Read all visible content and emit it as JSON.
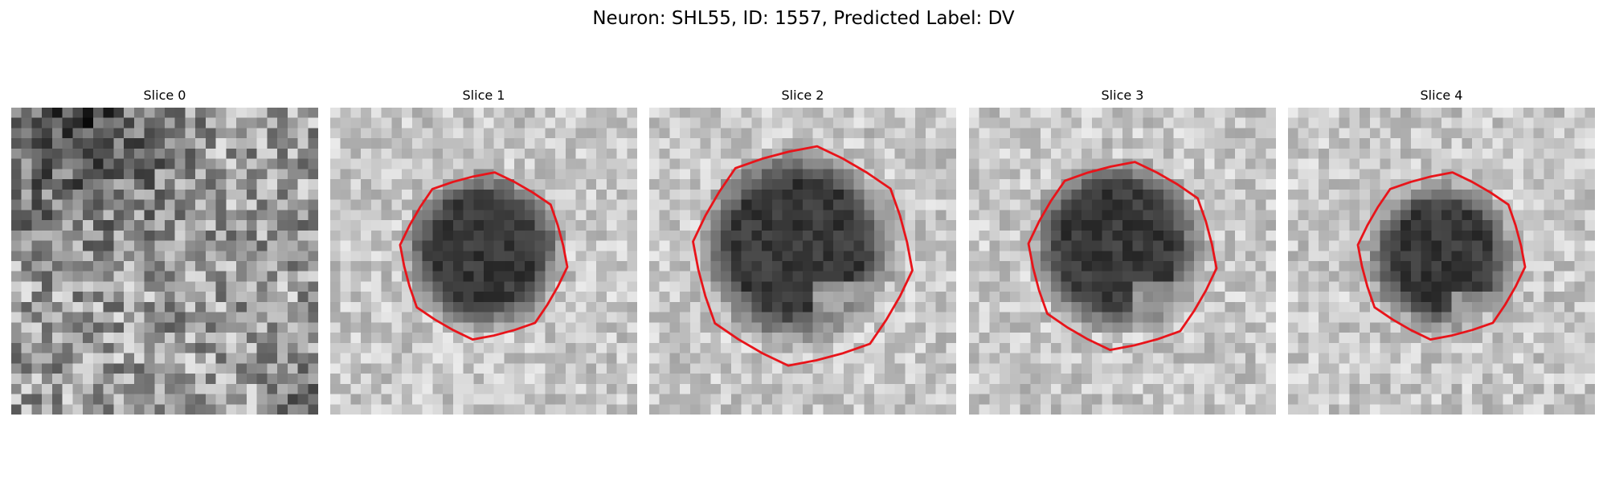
{
  "figure": {
    "title": "Neuron: SHL55, ID: 1557, Predicted Label: DV"
  },
  "colormap": "gray",
  "contour_color": "#e8141a",
  "panels": [
    {
      "title": "Slice 0",
      "roi": null,
      "blob": null,
      "background": "noisy-texture",
      "dark_corner": "top-left"
    },
    {
      "title": "Slice 1",
      "roi": {
        "center": [
          15,
          14.5
        ],
        "radius": 8.0
      },
      "blob": {
        "center": [
          14.5,
          13.5
        ],
        "radius": 7.0
      },
      "background": "light-noise"
    },
    {
      "title": "Slice 2",
      "roi": {
        "center": [
          15,
          14.5
        ],
        "radius": 10.5
      },
      "blob": {
        "center": [
          14,
          13
        ],
        "radius": 8.5
      },
      "background": "light-noise"
    },
    {
      "title": "Slice 3",
      "roi": {
        "center": [
          15,
          14.5
        ],
        "radius": 9.0
      },
      "blob": {
        "center": [
          14,
          13
        ],
        "radius": 7.5
      },
      "background": "light-noise"
    },
    {
      "title": "Slice 4",
      "roi": {
        "center": [
          15,
          14.5
        ],
        "radius": 8.0
      },
      "blob": {
        "center": [
          14.5,
          14
        ],
        "radius": 6.5
      },
      "background": "light-noise"
    }
  ]
}
